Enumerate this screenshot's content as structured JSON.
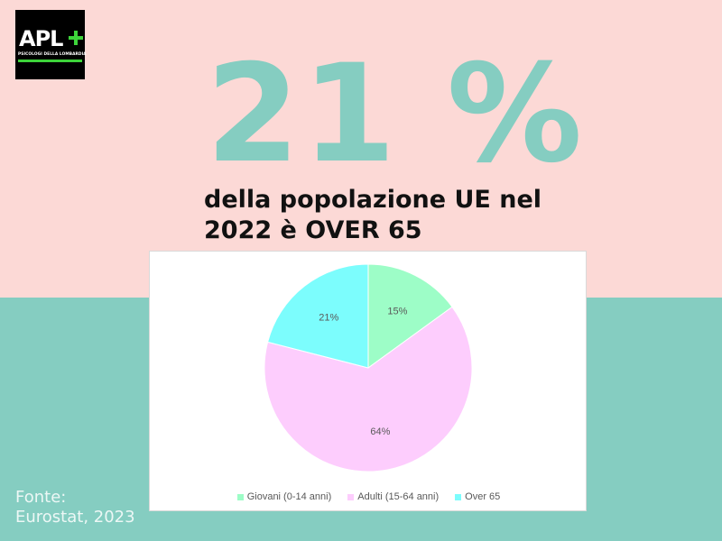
{
  "colors": {
    "top_bg": "#fcd9d6",
    "bottom_bg": "#85cdc1",
    "accent": "#85cdc1",
    "logo_green": "#3dd43a",
    "slice_giovani": "#9dfdc7",
    "slice_adulti": "#fdcdfd",
    "slice_over65": "#7cfdfd"
  },
  "logo": {
    "name": "APL",
    "subtitle": "PSICOLOGI DELLA LOMBARDIA"
  },
  "headline": {
    "big_value": "21 %",
    "line1": "della popolazione UE nel",
    "line2": "2022 è OVER 65"
  },
  "chart_data": {
    "type": "pie",
    "series": [
      {
        "values": [
          15,
          64,
          21
        ],
        "labels": [
          "15%",
          "64%",
          "21%"
        ]
      }
    ],
    "categories": [
      "Giovani (0-14 anni)",
      "Adulti (15-64 anni)",
      "Over 65"
    ],
    "legend_position": "bottom",
    "start_angle": "top",
    "direction": "clockwise"
  },
  "source": {
    "line1": "Fonte:",
    "line2": "Eurostat, 2023"
  }
}
